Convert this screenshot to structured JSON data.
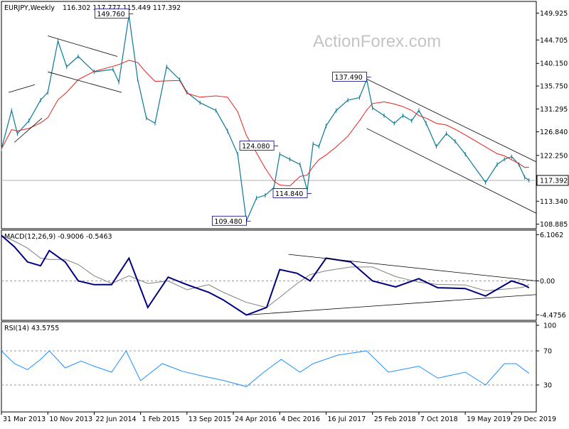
{
  "chart_data": [
    {
      "type": "candlestick",
      "panel": "price",
      "title": "EURJPY,Weekly",
      "ohlc_label": "116.302 117.777 115.449 117.392",
      "watermark": "ActionForex.com",
      "last_price": 117.392,
      "last_price_label": "117.392",
      "ylim": [
        108.0,
        152.2
      ],
      "y_ticks": [
        "149.925",
        "144.705",
        "140.150",
        "135.750",
        "131.295",
        "126.840",
        "122.250",
        "117.392",
        "113.340",
        "108.885"
      ],
      "y_tick_values": [
        149.925,
        144.705,
        140.15,
        135.75,
        131.295,
        126.84,
        122.25,
        117.392,
        113.34,
        108.885
      ],
      "close_series": [
        {
          "date": "2013-03-31",
          "close": 123.5
        },
        {
          "date": "2013-05-19",
          "close": 131.0
        },
        {
          "date": "2013-06-16",
          "close": 126.5
        },
        {
          "date": "2013-08-11",
          "close": 129.0
        },
        {
          "date": "2013-10-06",
          "close": 133.0
        },
        {
          "date": "2013-11-10",
          "close": 134.5
        },
        {
          "date": "2013-12-29",
          "close": 144.5
        },
        {
          "date": "2014-02-09",
          "close": 139.5
        },
        {
          "date": "2014-04-06",
          "close": 141.5
        },
        {
          "date": "2014-06-22",
          "close": 138.5
        },
        {
          "date": "2014-09-21",
          "close": 139.0
        },
        {
          "date": "2014-10-19",
          "close": 136.5
        },
        {
          "date": "2014-12-07",
          "close": 149.5
        },
        {
          "date": "2015-01-18",
          "close": 137.0
        },
        {
          "date": "2015-03-01",
          "close": 129.5
        },
        {
          "date": "2015-04-12",
          "close": 128.5
        },
        {
          "date": "2015-06-07",
          "close": 139.5
        },
        {
          "date": "2015-08-09",
          "close": 137.0
        },
        {
          "date": "2015-09-13",
          "close": 134.5
        },
        {
          "date": "2015-11-15",
          "close": 132.5
        },
        {
          "date": "2016-01-31",
          "close": 131.0
        },
        {
          "date": "2016-03-27",
          "close": 127.0
        },
        {
          "date": "2016-05-15",
          "close": 122.5
        },
        {
          "date": "2016-06-26",
          "close": 109.5
        },
        {
          "date": "2016-08-14",
          "close": 114.0
        },
        {
          "date": "2016-09-25",
          "close": 114.5
        },
        {
          "date": "2016-11-06",
          "close": 116.0
        },
        {
          "date": "2016-12-04",
          "close": 122.5
        },
        {
          "date": "2017-01-22",
          "close": 121.5
        },
        {
          "date": "2017-03-12",
          "close": 120.5
        },
        {
          "date": "2017-04-16",
          "close": 115.5
        },
        {
          "date": "2017-05-14",
          "close": 124.5
        },
        {
          "date": "2017-06-11",
          "close": 124.0
        },
        {
          "date": "2017-07-16",
          "close": 128.0
        },
        {
          "date": "2017-09-03",
          "close": 131.0
        },
        {
          "date": "2017-10-29",
          "close": 133.0
        },
        {
          "date": "2017-12-24",
          "close": 133.5
        },
        {
          "date": "2018-01-28",
          "close": 137.0
        },
        {
          "date": "2018-02-25",
          "close": 131.5
        },
        {
          "date": "2018-04-22",
          "close": 130.0
        },
        {
          "date": "2018-06-10",
          "close": 128.5
        },
        {
          "date": "2018-07-22",
          "close": 130.0
        },
        {
          "date": "2018-09-02",
          "close": 129.0
        },
        {
          "date": "2018-10-07",
          "close": 131.0
        },
        {
          "date": "2018-11-11",
          "close": 128.5
        },
        {
          "date": "2018-12-30",
          "close": 124.0
        },
        {
          "date": "2019-02-17",
          "close": 126.5
        },
        {
          "date": "2019-03-31",
          "close": 125.0
        },
        {
          "date": "2019-05-19",
          "close": 122.5
        },
        {
          "date": "2019-08-25",
          "close": 117.0
        },
        {
          "date": "2019-10-20",
          "close": 120.5
        },
        {
          "date": "2019-11-24",
          "close": 121.5
        },
        {
          "date": "2019-12-29",
          "close": 122.0
        },
        {
          "date": "2020-02-02",
          "close": 120.5
        },
        {
          "date": "2020-03-01",
          "close": 118.0
        },
        {
          "date": "2020-03-22",
          "close": 117.392
        }
      ],
      "moving_average_color": "#e8201e",
      "price_color": "#0a7a97",
      "callouts": [
        {
          "label": "149.760",
          "date": "2014-12-07",
          "value": 149.76
        },
        {
          "label": "137.490",
          "date": "2018-01-28",
          "value": 137.49
        },
        {
          "label": "124.080",
          "date": "2016-11-06",
          "value": 124.08
        },
        {
          "label": "114.840",
          "date": "2017-04-16",
          "value": 114.84
        },
        {
          "label": "109.480",
          "date": "2016-06-26",
          "value": 109.48
        }
      ],
      "trendlines": [
        {
          "from": {
            "date": "2013-05-05",
            "value": 134.5
          },
          "to": {
            "date": "2013-09-08",
            "value": 136.0
          }
        },
        {
          "from": {
            "date": "2013-06-02",
            "value": 124.8
          },
          "to": {
            "date": "2013-10-13",
            "value": 129.5
          }
        },
        {
          "from": {
            "date": "2013-11-10",
            "value": 145.5
          },
          "to": {
            "date": "2014-10-12",
            "value": 141.5
          }
        },
        {
          "from": {
            "date": "2013-11-10",
            "value": 138.5
          },
          "to": {
            "date": "2014-11-02",
            "value": 134.5
          }
        },
        {
          "from": {
            "date": "2017-12-24",
            "value": 137.8
          },
          "to": {
            "date": "2020-06-21",
            "value": 121.0
          }
        },
        {
          "from": {
            "date": "2018-01-28",
            "value": 127.5
          },
          "to": {
            "date": "2020-06-21",
            "value": 111.0
          }
        }
      ]
    },
    {
      "type": "line",
      "panel": "indicator",
      "title": "MACD(12,26,9) -0.9006 -0.5463",
      "ylim": [
        -5.2,
        6.7
      ],
      "y_ticks": [
        "6.1062",
        "0.00",
        "-4.4756"
      ],
      "y_tick_values": [
        6.1062,
        0.0,
        -4.4756
      ],
      "macd_color": "#00007f",
      "signal_color": "#808080",
      "macd_series": [
        {
          "date": "2013-03-31",
          "value": 6.0
        },
        {
          "date": "2013-06-02",
          "value": 4.5
        },
        {
          "date": "2013-08-04",
          "value": 2.5
        },
        {
          "date": "2013-10-06",
          "value": 2.0
        },
        {
          "date": "2013-11-17",
          "value": 4.0
        },
        {
          "date": "2014-02-02",
          "value": 2.5
        },
        {
          "date": "2014-04-06",
          "value": 0.0
        },
        {
          "date": "2014-06-22",
          "value": -0.5
        },
        {
          "date": "2014-09-14",
          "value": -0.5
        },
        {
          "date": "2014-12-07",
          "value": 3.0
        },
        {
          "date": "2015-03-08",
          "value": -3.5
        },
        {
          "date": "2015-06-14",
          "value": 0.5
        },
        {
          "date": "2015-09-13",
          "value": -0.5
        },
        {
          "date": "2015-12-27",
          "value": -1.5
        },
        {
          "date": "2016-03-06",
          "value": -2.5
        },
        {
          "date": "2016-06-26",
          "value": -4.5
        },
        {
          "date": "2016-10-02",
          "value": -3.5
        },
        {
          "date": "2016-12-04",
          "value": 1.5
        },
        {
          "date": "2017-02-26",
          "value": 1.0
        },
        {
          "date": "2017-04-30",
          "value": 0.0
        },
        {
          "date": "2017-07-16",
          "value": 3.0
        },
        {
          "date": "2017-11-12",
          "value": 2.5
        },
        {
          "date": "2018-02-25",
          "value": 0.0
        },
        {
          "date": "2018-06-17",
          "value": -0.8
        },
        {
          "date": "2018-10-07",
          "value": 0.3
        },
        {
          "date": "2019-01-06",
          "value": -0.9
        },
        {
          "date": "2019-05-19",
          "value": -1.0
        },
        {
          "date": "2019-08-25",
          "value": -2.0
        },
        {
          "date": "2019-12-29",
          "value": 0.0
        },
        {
          "date": "2020-02-23",
          "value": -0.5
        },
        {
          "date": "2020-03-22",
          "value": -0.9006
        }
      ],
      "trendlines": [
        {
          "from": {
            "date": "2017-01-15",
            "value": 3.5
          },
          "to": {
            "date": "2020-04-26",
            "value": 0.0
          }
        },
        {
          "from": {
            "date": "2016-06-26",
            "value": -4.5
          },
          "to": {
            "date": "2020-04-26",
            "value": -1.8
          }
        }
      ]
    },
    {
      "type": "line",
      "panel": "indicator",
      "title": "RSI(14) 43.5755",
      "ylim": [
        0,
        100
      ],
      "y_ticks": [
        "100",
        "70",
        "30"
      ],
      "y_tick_values": [
        100,
        70,
        30
      ],
      "line_color": "#1e90ff",
      "rsi_series": [
        {
          "date": "2013-03-31",
          "value": 70
        },
        {
          "date": "2013-06-02",
          "value": 55
        },
        {
          "date": "2013-08-04",
          "value": 48
        },
        {
          "date": "2013-10-06",
          "value": 60
        },
        {
          "date": "2013-11-17",
          "value": 70
        },
        {
          "date": "2014-02-02",
          "value": 50
        },
        {
          "date": "2014-04-20",
          "value": 58
        },
        {
          "date": "2014-06-22",
          "value": 52
        },
        {
          "date": "2014-09-14",
          "value": 45
        },
        {
          "date": "2014-11-23",
          "value": 70
        },
        {
          "date": "2015-02-01",
          "value": 35
        },
        {
          "date": "2015-05-17",
          "value": 55
        },
        {
          "date": "2015-08-23",
          "value": 46
        },
        {
          "date": "2015-12-06",
          "value": 40
        },
        {
          "date": "2016-03-13",
          "value": 35
        },
        {
          "date": "2016-06-26",
          "value": 28
        },
        {
          "date": "2016-09-18",
          "value": 45
        },
        {
          "date": "2016-12-11",
          "value": 60
        },
        {
          "date": "2017-03-12",
          "value": 45
        },
        {
          "date": "2017-05-14",
          "value": 55
        },
        {
          "date": "2017-09-10",
          "value": 65
        },
        {
          "date": "2018-01-28",
          "value": 70
        },
        {
          "date": "2018-05-13",
          "value": 45
        },
        {
          "date": "2018-10-07",
          "value": 52
        },
        {
          "date": "2019-01-06",
          "value": 38
        },
        {
          "date": "2019-05-19",
          "value": 45
        },
        {
          "date": "2019-08-25",
          "value": 30
        },
        {
          "date": "2019-11-24",
          "value": 55
        },
        {
          "date": "2020-01-19",
          "value": 55
        },
        {
          "date": "2020-03-22",
          "value": 43.5755
        }
      ]
    }
  ],
  "x_axis": {
    "ticks": [
      {
        "label": "31 Mar 2013",
        "date": "2013-03-31"
      },
      {
        "label": "10 Nov 2013",
        "date": "2013-11-10"
      },
      {
        "label": "22 Jun 2014",
        "date": "2014-06-22"
      },
      {
        "label": "1 Feb 2015",
        "date": "2015-02-01"
      },
      {
        "label": "13 Sep 2015",
        "date": "2015-09-13"
      },
      {
        "label": "24 Apr 2016",
        "date": "2016-04-24"
      },
      {
        "label": "4 Dec 2016",
        "date": "2016-12-04"
      },
      {
        "label": "16 Jul 2017",
        "date": "2017-07-16"
      },
      {
        "label": "25 Feb 2018",
        "date": "2018-02-25"
      },
      {
        "label": "7 Oct 2018",
        "date": "2018-10-07"
      },
      {
        "label": "19 May 2019",
        "date": "2019-05-19"
      },
      {
        "label": "29 Dec 2019",
        "date": "2019-12-29"
      }
    ],
    "range": [
      "2013-03-31",
      "2020-04-26"
    ]
  }
}
